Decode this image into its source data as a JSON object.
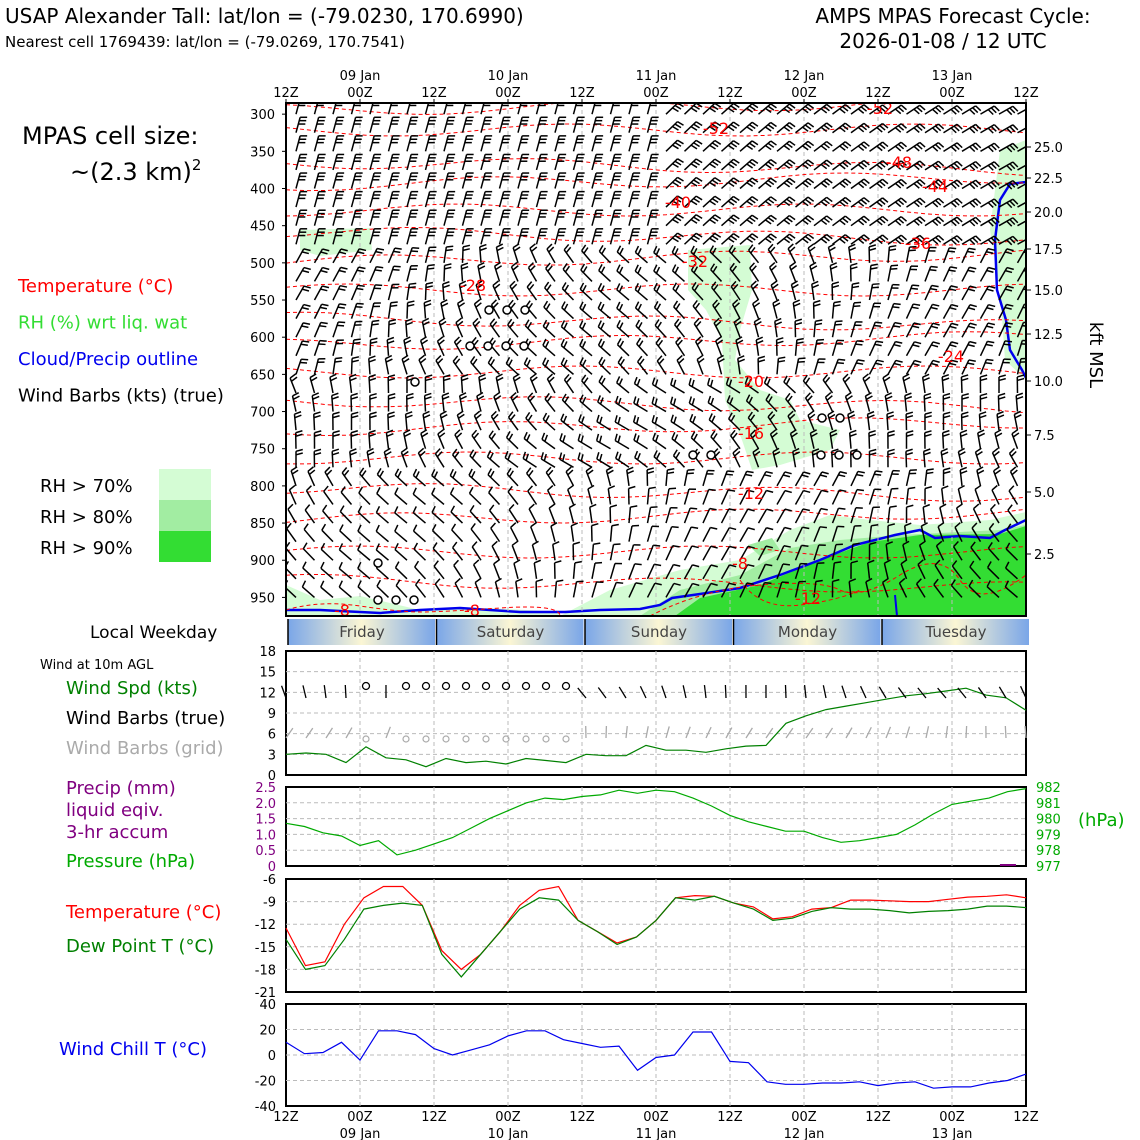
{
  "header": {
    "station": "USAP Alexander Tall: lat/lon = (-79.0230, 170.6990)",
    "nearest": "Nearest cell 1769439: lat/lon = (-79.0269, 170.7541)",
    "cycle_label": "AMPS MPAS Forecast Cycle:",
    "cycle_value": "2026-01-08 / 12 UTC"
  },
  "sidebar": {
    "cell_size_label": "MPAS cell size:",
    "cell_size_value": "~(2.3 km)",
    "cell_size_exp": "2",
    "legend": [
      {
        "label": "Temperature (°C)",
        "color": "#ff0000"
      },
      {
        "label": "RH (%) wrt liq. wat",
        "color": "#33dd33"
      },
      {
        "label": "Cloud/Precip outline",
        "color": "#0000ee"
      },
      {
        "label": "Wind Barbs (kts) (true)",
        "color": "#000000"
      }
    ],
    "rh_legend": [
      {
        "label": "RH > 70%",
        "color": "#d4fcd4"
      },
      {
        "label": "RH > 80%",
        "color": "#a2eda2"
      },
      {
        "label": "RH > 90%",
        "color": "#33dd33"
      }
    ],
    "weekday_label": "Local Weekday",
    "wind10_label": "Wind at 10m AGL",
    "wind_labels": [
      {
        "label": "Wind Spd (kts)",
        "color": "#008000"
      },
      {
        "label": "Wind Barbs (true)",
        "color": "#000000"
      },
      {
        "label": "Wind Barbs (grid)",
        "color": "#aaaaaa"
      }
    ],
    "precip_labels": [
      {
        "label": "Precip (mm)",
        "color": "#800080"
      },
      {
        "label": "liquid eqiv.",
        "color": "#800080"
      },
      {
        "label": "3-hr accum",
        "color": "#800080"
      },
      {
        "label": "Pressure (hPa)",
        "color": "#00aa00"
      }
    ],
    "temp_labels": [
      {
        "label": "Temperature (°C)",
        "color": "#ff0000"
      },
      {
        "label": "Dew Point T (°C)",
        "color": "#008000"
      }
    ],
    "windchill_label": {
      "label": "Wind Chill T (°C)",
      "color": "#0000ee"
    }
  },
  "chart_data": {
    "time_axis": {
      "top_hours": [
        "12Z",
        "00Z",
        "12Z",
        "00Z",
        "12Z",
        "00Z",
        "12Z",
        "00Z",
        "12Z",
        "00Z",
        "12Z"
      ],
      "top_dates": [
        "09 Jan",
        "10 Jan",
        "11 Jan",
        "12 Jan",
        "13 Jan"
      ],
      "bottom_hours": [
        "12Z",
        "00Z",
        "12Z",
        "00Z",
        "12Z",
        "00Z",
        "12Z",
        "00Z",
        "12Z",
        "00Z",
        "12Z"
      ],
      "bottom_dates": [
        "09 Jan",
        "10 Jan",
        "11 Jan",
        "12 Jan",
        "13 Jan"
      ]
    },
    "profile": {
      "type": "time-height",
      "pressure_ticks": [
        "300",
        "350",
        "400",
        "450",
        "500",
        "550",
        "600",
        "650",
        "700",
        "750",
        "800",
        "850",
        "900",
        "950"
      ],
      "kft_ticks": [
        "25.0",
        "22.5",
        "20.0",
        "17.5",
        "15.0",
        "12.5",
        "10.0",
        "7.5",
        "5.0",
        "2.5"
      ],
      "right_axis_label": "kft MSL",
      "temp_contour_labels": [
        "-52",
        "-52",
        "-48",
        "-44",
        "-40",
        "-36",
        "-32",
        "-28",
        "-24",
        "-20",
        "-16",
        "-12",
        "-8",
        "-12",
        "-8",
        "-8"
      ]
    },
    "weekdays": [
      "Friday",
      "Saturday",
      "Sunday",
      "Monday",
      "Tuesday"
    ],
    "wind10": {
      "type": "line",
      "yticks": [
        "0",
        "3",
        "6",
        "9",
        "12",
        "15",
        "18"
      ],
      "ylim": [
        0,
        18
      ],
      "speed": [
        3.0,
        3.2,
        3.0,
        1.8,
        4.1,
        2.5,
        2.2,
        1.2,
        2.4,
        1.8,
        2.0,
        1.6,
        2.4,
        2.1,
        1.8,
        3.0,
        2.8,
        2.8,
        4.3,
        3.6,
        3.6,
        3.3,
        3.8,
        4.2,
        4.3,
        7.5,
        8.6,
        9.5,
        10.0,
        10.5,
        11.0,
        11.5,
        11.8,
        12.2,
        12.6,
        11.6,
        11.2,
        9.4
      ],
      "calm_steps": [
        4,
        6,
        7,
        8,
        9,
        10,
        11,
        12,
        13,
        14
      ]
    },
    "precip_pressure": {
      "type": "line",
      "precip_ticks": [
        "0",
        "0.5",
        "1.0",
        "1.5",
        "2.0",
        "2.5"
      ],
      "precip_ylim": [
        0,
        2.5
      ],
      "precip_mm": [
        0,
        0,
        0,
        0,
        0,
        0,
        0,
        0,
        0,
        0,
        0,
        0,
        0,
        0,
        0,
        0,
        0,
        0,
        0,
        0,
        0,
        0,
        0,
        0,
        0,
        0,
        0,
        0,
        0,
        0,
        0,
        0,
        0,
        0,
        0,
        0,
        0,
        0,
        0,
        0,
        0.03,
        0
      ],
      "pressure_ticks": [
        "977",
        "978",
        "979",
        "980",
        "981",
        "982"
      ],
      "pressure_ylim": [
        977,
        982
      ],
      "pressure_unit": "(hPa)",
      "pressure": [
        979.7,
        979.5,
        979.1,
        978.9,
        978.3,
        978.6,
        977.7,
        978.0,
        978.4,
        978.8,
        979.4,
        980.0,
        980.5,
        981.0,
        981.3,
        981.2,
        981.4,
        981.5,
        981.8,
        981.6,
        981.8,
        981.7,
        981.3,
        980.8,
        980.2,
        979.8,
        979.5,
        979.2,
        979.2,
        978.8,
        978.5,
        978.6,
        978.8,
        979.0,
        979.6,
        980.3,
        980.9,
        981.1,
        981.3,
        981.7,
        981.9
      ]
    },
    "temperature": {
      "type": "line",
      "yticks": [
        "-21",
        "-18",
        "-15",
        "-12",
        "-9",
        "-6"
      ],
      "ylim": [
        -21,
        -6
      ],
      "temp": [
        -12.5,
        -17.5,
        -17.0,
        -12.0,
        -8.5,
        -7.0,
        -7.0,
        -9.5,
        -15.5,
        -18.0,
        -16.0,
        -13.0,
        -9.5,
        -7.5,
        -7.0,
        -11.5,
        -13.0,
        -14.5,
        -13.7,
        -11.5,
        -8.5,
        -8.2,
        -8.3,
        -9.2,
        -9.7,
        -11.3,
        -11.0,
        -10.0,
        -9.8,
        -8.8,
        -8.8,
        -8.9,
        -9.0,
        -9.0,
        -8.7,
        -8.4,
        -8.3,
        -8.1,
        -8.5
      ],
      "dewpoint": [
        -14.0,
        -18.0,
        -17.5,
        -14.0,
        -10.0,
        -9.5,
        -9.2,
        -9.5,
        -16.0,
        -19.0,
        -16.0,
        -13.0,
        -10.0,
        -8.5,
        -8.8,
        -11.5,
        -13.0,
        -14.7,
        -13.7,
        -11.5,
        -8.5,
        -8.8,
        -8.3,
        -9.2,
        -10.0,
        -11.5,
        -11.2,
        -10.3,
        -9.8,
        -10.0,
        -10.0,
        -10.2,
        -10.5,
        -10.3,
        -10.2,
        -10.0,
        -9.6,
        -9.6,
        -9.8
      ]
    },
    "windchill": {
      "type": "line",
      "yticks": [
        "-40",
        "-20",
        "0",
        "20",
        "40"
      ],
      "ylim": [
        -40,
        40
      ],
      "values": [
        10,
        1,
        2,
        10,
        -4,
        19,
        19,
        16,
        5,
        0,
        4,
        8,
        15,
        19,
        19,
        12,
        9,
        6,
        7,
        -12,
        -2,
        0,
        18,
        18,
        -5,
        -6,
        -21,
        -23,
        -23,
        -22,
        -22,
        -21,
        -24,
        -22,
        -21,
        -26,
        -25,
        -25,
        -22,
        -20,
        -15
      ]
    }
  }
}
